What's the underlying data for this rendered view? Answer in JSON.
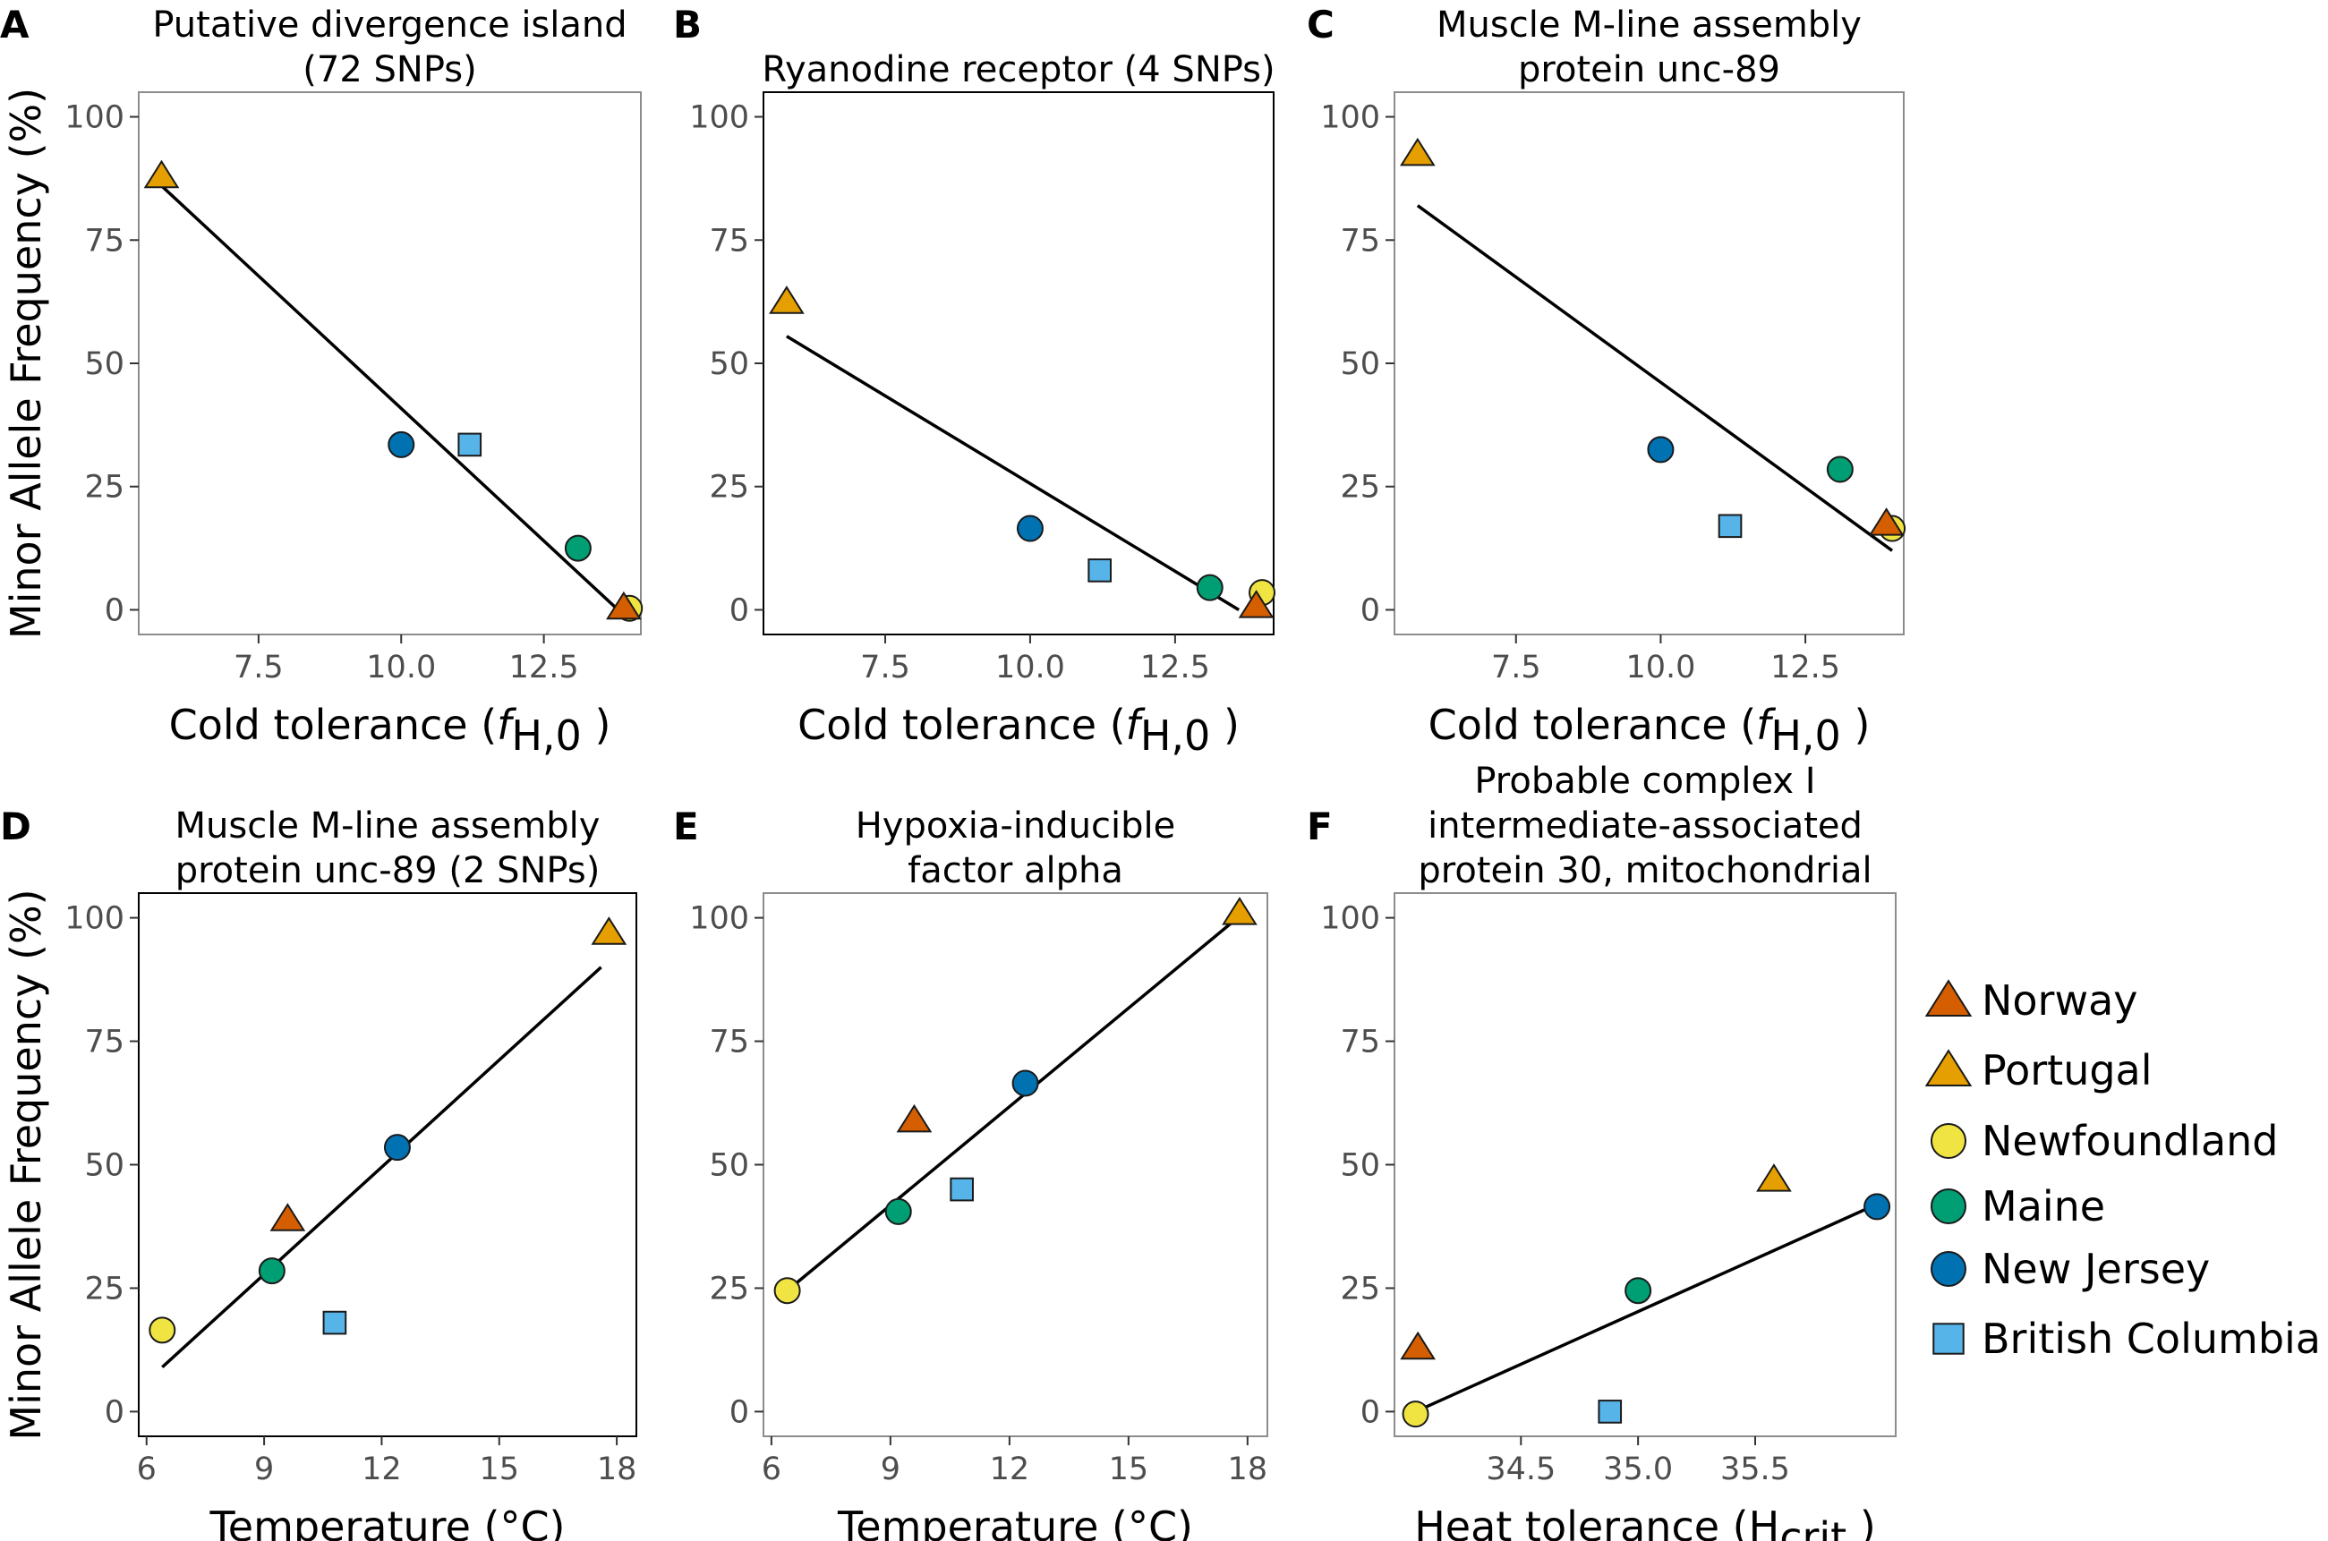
{
  "figure": {
    "y_axis_label": "Minor Allele Frequency (%)"
  },
  "colors": {
    "Norway": "#d55e00",
    "Portugal": "#e69f00",
    "Newfoundland": "#f0e442",
    "Maine": "#009e73",
    "New Jersey": "#0072b2",
    "British Columbia": "#56b4e9"
  },
  "legend": [
    {
      "label": "Norway",
      "shape": "triangle"
    },
    {
      "label": "Portugal",
      "shape": "triangle"
    },
    {
      "label": "Newfoundland",
      "shape": "circle"
    },
    {
      "label": "Maine",
      "shape": "circle"
    },
    {
      "label": "New Jersey",
      "shape": "circle"
    },
    {
      "label": "British Columbia",
      "shape": "square"
    }
  ],
  "chart_data": [
    {
      "type": "scatter",
      "panel": "A",
      "title_lines": [
        "Putative divergence island",
        "(72 SNPs)"
      ],
      "xlabel": {
        "main": "Cold tolerance (",
        "italic": "f",
        "sub": "H,0",
        "end": " )"
      },
      "ylabel": "Minor Allele Frequency (%)",
      "xlim": [
        5.4,
        14.2
      ],
      "ylim": [
        -5,
        105
      ],
      "xticks": [
        7.5,
        10.0,
        12.5
      ],
      "xtick_labels": [
        "7.5",
        "10.0",
        "12.5"
      ],
      "yticks": [
        0,
        25,
        50,
        75,
        100
      ],
      "ytick_labels": [
        "0",
        "25",
        "50",
        "75",
        "100"
      ],
      "points": [
        {
          "site": "Portugal",
          "x": 5.8,
          "y": 88
        },
        {
          "site": "New Jersey",
          "x": 10.0,
          "y": 33.5
        },
        {
          "site": "British Columbia",
          "x": 11.2,
          "y": 33.5
        },
        {
          "site": "Maine",
          "x": 13.1,
          "y": 12.5
        },
        {
          "site": "Newfoundland",
          "x": 14.0,
          "y": 0.3
        },
        {
          "site": "Norway",
          "x": 13.9,
          "y": 0.5
        }
      ],
      "fit": [
        [
          5.8,
          86
        ],
        [
          13.8,
          0
        ]
      ]
    },
    {
      "type": "scatter",
      "panel": "B",
      "title_lines": [
        "Ryanodine receptor (4 SNPs)"
      ],
      "xlabel": {
        "main": "Cold tolerance (",
        "italic": "f",
        "sub": "H,0",
        "end": " )"
      },
      "ylabel": "",
      "xlim": [
        5.4,
        14.2
      ],
      "ylim": [
        -5,
        105
      ],
      "xticks": [
        7.5,
        10.0,
        12.5
      ],
      "xtick_labels": [
        "7.5",
        "10.0",
        "12.5"
      ],
      "yticks": [
        0,
        25,
        50,
        75,
        100
      ],
      "ytick_labels": [
        "0",
        "25",
        "50",
        "75",
        "100"
      ],
      "points": [
        {
          "site": "Portugal",
          "x": 5.8,
          "y": 62.5
        },
        {
          "site": "New Jersey",
          "x": 10.0,
          "y": 16.5
        },
        {
          "site": "British Columbia",
          "x": 11.2,
          "y": 8
        },
        {
          "site": "Maine",
          "x": 13.1,
          "y": 4.5
        },
        {
          "site": "Newfoundland",
          "x": 14.0,
          "y": 3.5
        },
        {
          "site": "Norway",
          "x": 13.9,
          "y": 0.8
        }
      ],
      "fit": [
        [
          5.8,
          55.5
        ],
        [
          13.6,
          0
        ]
      ]
    },
    {
      "type": "scatter",
      "panel": "C",
      "title_lines": [
        "Muscle M-line assembly",
        "protein unc-89"
      ],
      "xlabel": {
        "main": "Cold tolerance (",
        "italic": "f",
        "sub": "H,0",
        "end": " )"
      },
      "ylabel": "",
      "xlim": [
        5.4,
        14.2
      ],
      "ylim": [
        -5,
        105
      ],
      "xticks": [
        7.5,
        10.0,
        12.5
      ],
      "xtick_labels": [
        "7.5",
        "10.0",
        "12.5"
      ],
      "yticks": [
        0,
        25,
        50,
        75,
        100
      ],
      "ytick_labels": [
        "0",
        "25",
        "50",
        "75",
        "100"
      ],
      "points": [
        {
          "site": "Portugal",
          "x": 5.8,
          "y": 92.5
        },
        {
          "site": "New Jersey",
          "x": 10.0,
          "y": 32.5
        },
        {
          "site": "British Columbia",
          "x": 11.2,
          "y": 17
        },
        {
          "site": "Maine",
          "x": 13.1,
          "y": 28.5
        },
        {
          "site": "Newfoundland",
          "x": 14.0,
          "y": 16.5
        },
        {
          "site": "Norway",
          "x": 13.9,
          "y": 17.5
        }
      ],
      "fit": [
        [
          5.8,
          82
        ],
        [
          14.0,
          12
        ]
      ]
    },
    {
      "type": "scatter",
      "panel": "D",
      "title_lines": [
        "Muscle M-line assembly",
        "protein unc-89 (2 SNPs)"
      ],
      "xlabel": {
        "main": "Temperature (°C)"
      },
      "ylabel": "Minor Allele Frequency (%)",
      "xlim": [
        5.8,
        18.5
      ],
      "ylim": [
        -5,
        105
      ],
      "xticks": [
        6,
        9,
        12,
        15,
        18
      ],
      "xtick_labels": [
        "6",
        "9",
        "12",
        "15",
        "18"
      ],
      "yticks": [
        0,
        25,
        50,
        75,
        100
      ],
      "ytick_labels": [
        "0",
        "25",
        "50",
        "75",
        "100"
      ],
      "points": [
        {
          "site": "Newfoundland",
          "x": 6.4,
          "y": 16.5
        },
        {
          "site": "Maine",
          "x": 9.2,
          "y": 28.5
        },
        {
          "site": "Norway",
          "x": 9.6,
          "y": 39
        },
        {
          "site": "British Columbia",
          "x": 10.8,
          "y": 18
        },
        {
          "site": "New Jersey",
          "x": 12.4,
          "y": 53.5
        },
        {
          "site": "Portugal",
          "x": 17.8,
          "y": 97
        }
      ],
      "fit": [
        [
          6.4,
          9
        ],
        [
          17.6,
          90
        ]
      ]
    },
    {
      "type": "scatter",
      "panel": "E",
      "title_lines": [
        "Hypoxia-inducible",
        "factor alpha"
      ],
      "xlabel": {
        "main": "Temperature (°C)"
      },
      "ylabel": "",
      "xlim": [
        5.8,
        18.5
      ],
      "ylim": [
        -5,
        105
      ],
      "xticks": [
        6,
        9,
        12,
        15,
        18
      ],
      "xtick_labels": [
        "6",
        "9",
        "12",
        "15",
        "18"
      ],
      "yticks": [
        0,
        25,
        50,
        75,
        100
      ],
      "ytick_labels": [
        "0",
        "25",
        "50",
        "75",
        "100"
      ],
      "points": [
        {
          "site": "Newfoundland",
          "x": 6.4,
          "y": 24.5
        },
        {
          "site": "Maine",
          "x": 9.2,
          "y": 40.5
        },
        {
          "site": "Norway",
          "x": 9.6,
          "y": 59
        },
        {
          "site": "British Columbia",
          "x": 10.8,
          "y": 45
        },
        {
          "site": "New Jersey",
          "x": 12.4,
          "y": 66.5
        },
        {
          "site": "Portugal",
          "x": 17.8,
          "y": 101
        }
      ],
      "fit": [
        [
          6.4,
          24.5
        ],
        [
          17.6,
          99
        ]
      ]
    },
    {
      "type": "scatter",
      "panel": "F",
      "title_lines": [
        "Probable complex I",
        "intermediate-associated",
        "protein 30, mitochondrial"
      ],
      "xlabel": {
        "main": "Heat tolerance (H",
        "sub": "crit",
        "end": " )"
      },
      "ylabel": "",
      "xlim": [
        33.96,
        36.1
      ],
      "ylim": [
        -5,
        105
      ],
      "xticks": [
        34.5,
        35.0,
        35.5
      ],
      "xtick_labels": [
        "34.5",
        "35.0",
        "35.5"
      ],
      "yticks": [
        0,
        25,
        50,
        75,
        100
      ],
      "ytick_labels": [
        "0",
        "25",
        "50",
        "75",
        "100"
      ],
      "points": [
        {
          "site": "Newfoundland",
          "x": 34.05,
          "y": -0.5
        },
        {
          "site": "Norway",
          "x": 34.06,
          "y": 13
        },
        {
          "site": "British Columbia",
          "x": 34.88,
          "y": 0
        },
        {
          "site": "Maine",
          "x": 35.0,
          "y": 24.5
        },
        {
          "site": "Portugal",
          "x": 35.58,
          "y": 47
        },
        {
          "site": "New Jersey",
          "x": 36.02,
          "y": 41.5
        }
      ],
      "fit": [
        [
          34.05,
          0
        ],
        [
          36.02,
          42
        ]
      ]
    }
  ]
}
